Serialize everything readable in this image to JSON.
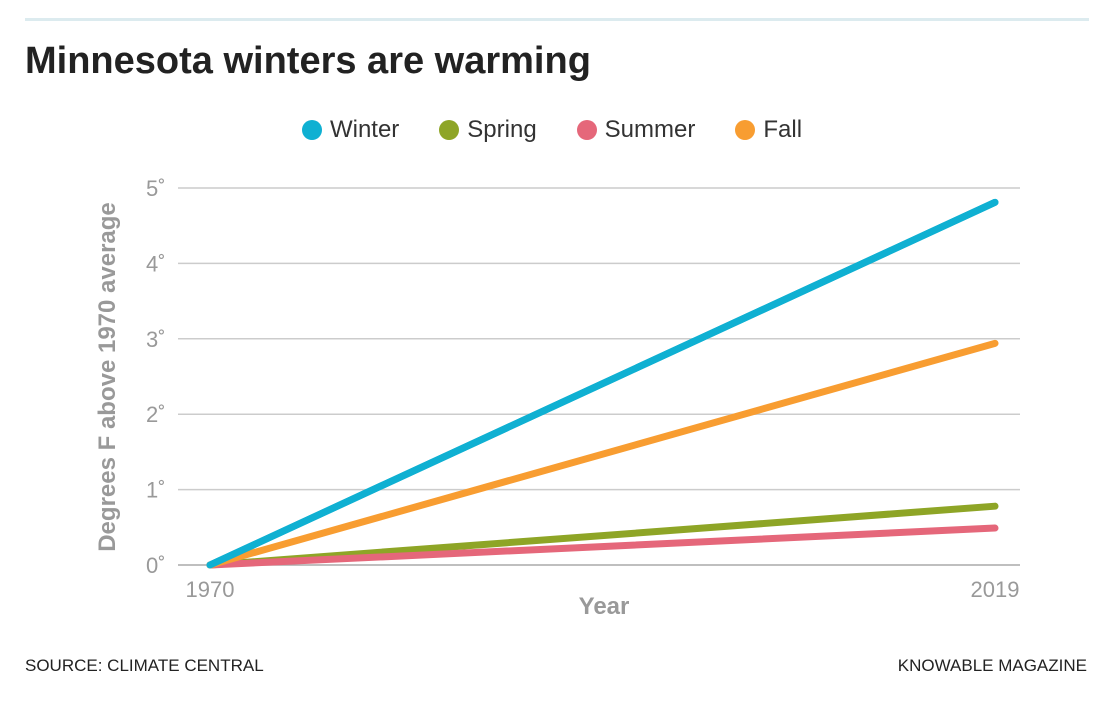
{
  "chart_data": {
    "type": "line",
    "title": "Minnesota winters are warming",
    "xlabel": "Year",
    "ylabel": "Degrees F above 1970 average",
    "x": [
      1970,
      2019
    ],
    "x_ticks": [
      "1970",
      "2019"
    ],
    "y_ticks": [
      "0˚",
      "1˚",
      "2˚",
      "3˚",
      "4˚",
      "5˚"
    ],
    "ylim": [
      0,
      5
    ],
    "grid": true,
    "legend": "top",
    "series": [
      {
        "name": "Winter",
        "color": "#0fb0d2",
        "values": [
          0,
          4.81
        ]
      },
      {
        "name": "Spring",
        "color": "#8ea526",
        "values": [
          0,
          0.78
        ]
      },
      {
        "name": "Summer",
        "color": "#e5677a",
        "values": [
          0,
          0.49
        ]
      },
      {
        "name": "Fall",
        "color": "#f89d31",
        "values": [
          0,
          2.94
        ]
      }
    ]
  },
  "footer": {
    "source": "SOURCE: CLIMATE CENTRAL",
    "publisher": "KNOWABLE MAGAZINE"
  }
}
